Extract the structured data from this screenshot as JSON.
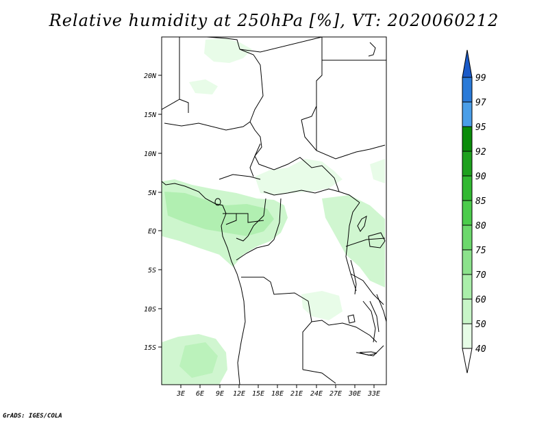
{
  "title": "Relative humidity at 250hPa [%], VT: 2020060212",
  "credit": "GrADS: IGES/COLA",
  "lat_labels": [
    "20N",
    "15N",
    "10N",
    "5N",
    "EQ",
    "5S",
    "10S",
    "15S"
  ],
  "lon_labels": [
    "3E",
    "6E",
    "9E",
    "12E",
    "15E",
    "18E",
    "21E",
    "24E",
    "27E",
    "30E",
    "33E"
  ],
  "colorbar": {
    "labels": [
      "40",
      "50",
      "60",
      "70",
      "75",
      "80",
      "85",
      "90",
      "92",
      "95",
      "97",
      "99"
    ],
    "colors": [
      "#ffffff",
      "#e6fce6",
      "#c8f5c8",
      "#aaeeaa",
      "#8ce28c",
      "#6cd86c",
      "#4ccc4c",
      "#32b832",
      "#1ea01e",
      "#0a8c0a",
      "#4a9ee8",
      "#2a7ad8",
      "#1a5ac8"
    ]
  }
}
